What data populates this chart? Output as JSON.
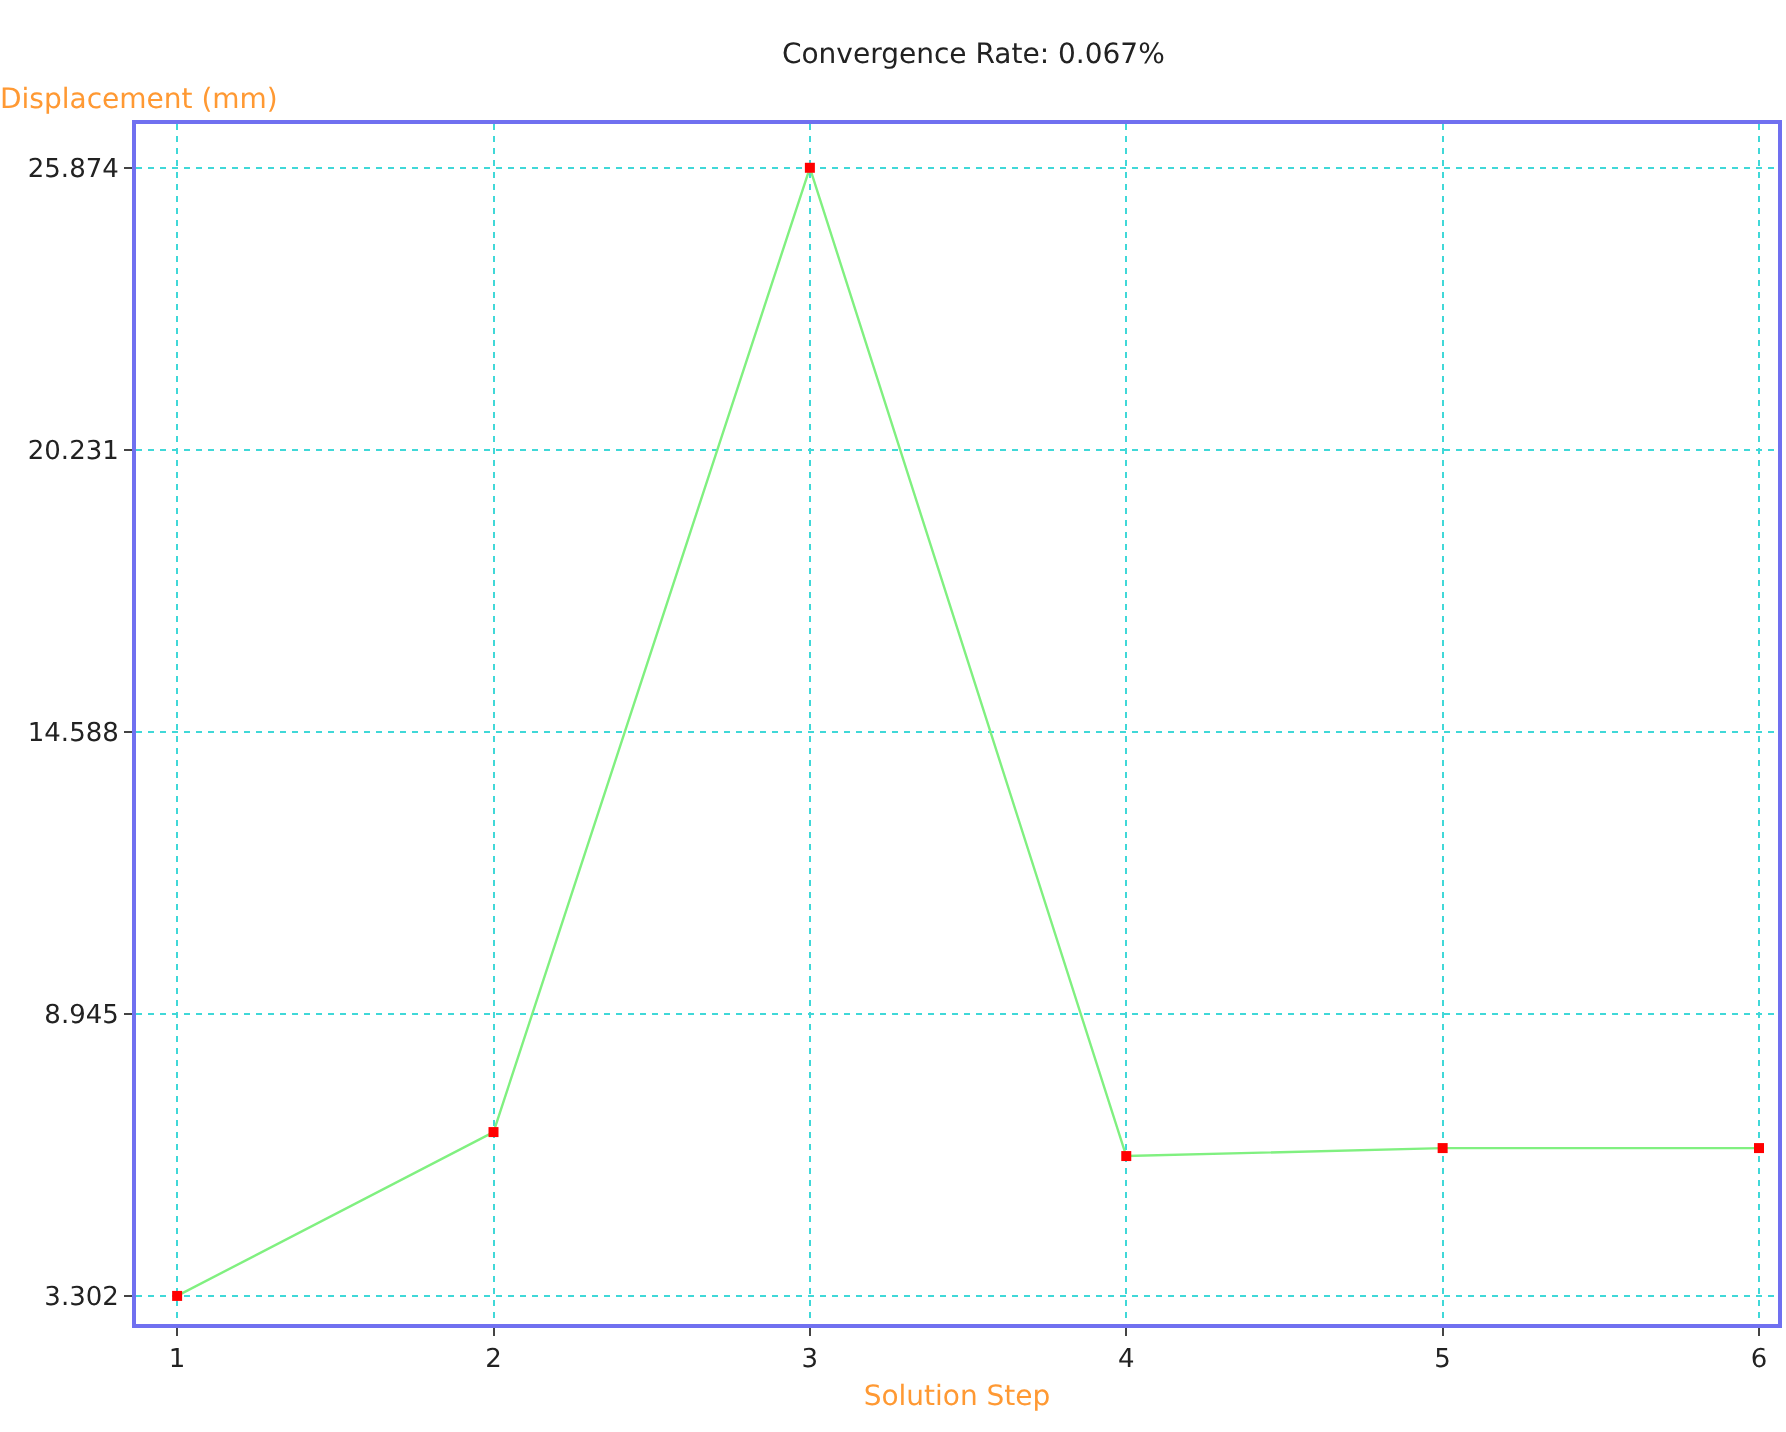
{
  "chart_data": {
    "type": "line",
    "title": "Convergence Rate: 0.067%",
    "xlabel": "Solution Step",
    "ylabel": "Displacement (mm)",
    "x": [
      1,
      2,
      3,
      4,
      5,
      6
    ],
    "series": [
      {
        "color": "#80f080",
        "values": [
          3.302,
          6.58,
          25.874,
          6.1,
          6.26,
          6.26
        ]
      }
    ],
    "marker": "square",
    "line_style": "solid",
    "grid": true,
    "xlim": [
      0.87,
      6.06
    ],
    "xticks": [
      1,
      2,
      3,
      4,
      5,
      6
    ],
    "ylim": [
      2.74,
      26.75
    ],
    "yticks": [
      3.302,
      8.945,
      14.588,
      20.231,
      25.874
    ]
  }
}
